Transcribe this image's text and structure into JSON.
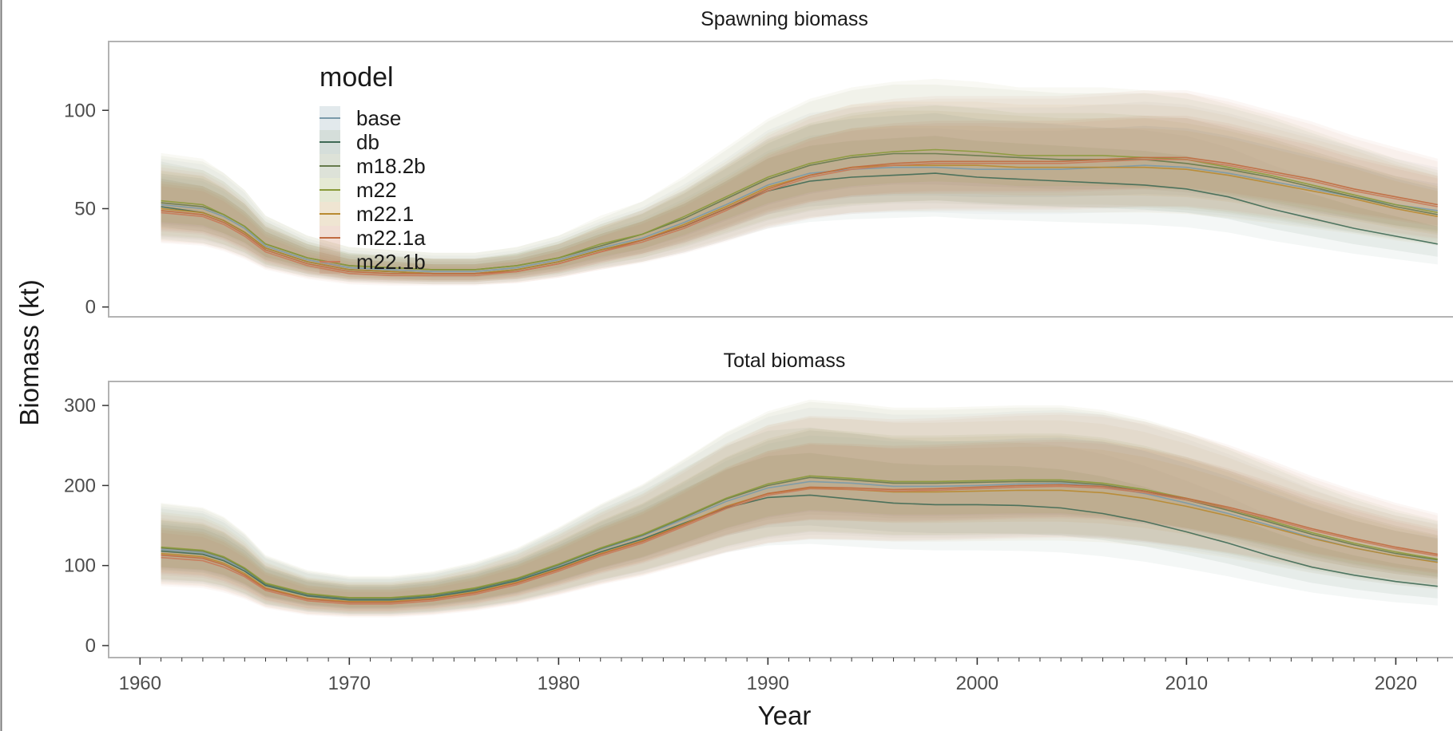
{
  "chart_data": {
    "type": "area",
    "xlabel": "Year",
    "ylabel": "Biomass (kt)",
    "legend": {
      "title": "model",
      "placement": "top-left inside",
      "entries": [
        "base",
        "db",
        "m18.2b",
        "m22",
        "m22.1",
        "m22.1a",
        "m22.1b"
      ]
    },
    "series_colors": {
      "base": "#7a9aaa",
      "db": "#3f6a55",
      "m18.2b": "#667a4c",
      "m22": "#8a9a3a",
      "m22.1": "#b88a30",
      "m22.1a": "#c06a40",
      "m22.1b": "#c87a5a"
    },
    "grid": false,
    "x_ticks": [
      1960,
      1970,
      1980,
      1990,
      2000,
      2010,
      2020
    ],
    "xlim": [
      1958.5,
      2023
    ],
    "panels": [
      {
        "title": "Spawning biomass",
        "ylim": [
          -5,
          135
        ],
        "y_ticks": [
          0,
          50,
          100
        ],
        "x": [
          1961,
          1963,
          1964,
          1965,
          1966,
          1968,
          1970,
          1972,
          1974,
          1976,
          1978,
          1980,
          1982,
          1984,
          1986,
          1988,
          1990,
          1992,
          1994,
          1996,
          1998,
          2000,
          2002,
          2004,
          2006,
          2008,
          2010,
          2012,
          2014,
          2016,
          2018,
          2020,
          2022
        ],
        "series": [
          {
            "name": "base",
            "values": [
              52,
              50,
              46,
              40,
              31,
              24,
              20,
              19,
              18,
              18,
              20,
              24,
              30,
              35,
              43,
              52,
              62,
              68,
              70,
              71,
              71,
              70,
              70,
              70,
              71,
              72,
              71,
              68,
              64,
              60,
              56,
              52,
              49
            ]
          },
          {
            "name": "db",
            "values": [
              51,
              48,
              44,
              38,
              30,
              23,
              19,
              18,
              17,
              17,
              19,
              23,
              29,
              34,
              41,
              50,
              59,
              64,
              66,
              67,
              68,
              66,
              65,
              64,
              63,
              62,
              60,
              56,
              50,
              45,
              40,
              36,
              32
            ]
          },
          {
            "name": "m18.2b",
            "values": [
              53,
              51,
              47,
              41,
              32,
              25,
              21,
              20,
              19,
              19,
              21,
              25,
              31,
              37,
              45,
              55,
              65,
              72,
              76,
              78,
              78,
              77,
              76,
              75,
              75,
              75,
              73,
              70,
              66,
              61,
              56,
              51,
              47
            ]
          },
          {
            "name": "m22",
            "values": [
              54,
              52,
              47,
              41,
              32,
              25,
              21,
              20,
              19,
              19,
              21,
              25,
              32,
              37,
              46,
              56,
              66,
              73,
              77,
              79,
              80,
              79,
              77,
              77,
              77,
              76,
              75,
              71,
              67,
              62,
              57,
              52,
              48
            ]
          },
          {
            "name": "m22.1",
            "values": [
              50,
              48,
              44,
              38,
              30,
              23,
              19,
              18,
              17,
              17,
              19,
              23,
              29,
              34,
              42,
              51,
              61,
              67,
              71,
              72,
              72,
              72,
              71,
              71,
              71,
              71,
              70,
              67,
              63,
              59,
              55,
              50,
              46
            ]
          },
          {
            "name": "m22.1a",
            "values": [
              49,
              47,
              43,
              37,
              29,
              22,
              18,
              17,
              17,
              17,
              18,
              22,
              28,
              34,
              41,
              50,
              60,
              67,
              71,
              73,
              74,
              74,
              74,
              74,
              75,
              76,
              76,
              73,
              69,
              65,
              60,
              56,
              52
            ]
          },
          {
            "name": "m22.1b",
            "values": [
              48,
              46,
              42,
              36,
              28,
              21,
              17,
              16,
              16,
              16,
              18,
              22,
              28,
              33,
              40,
              49,
              59,
              66,
              70,
              72,
              73,
              73,
              73,
              73,
              74,
              75,
              75,
              72,
              68,
              64,
              59,
              55,
              51
            ]
          }
        ]
      },
      {
        "title": "Total biomass",
        "ylim": [
          -15,
          330
        ],
        "y_ticks": [
          0,
          100,
          200,
          300
        ],
        "x": [
          1961,
          1963,
          1964,
          1965,
          1966,
          1968,
          1970,
          1972,
          1974,
          1976,
          1978,
          1980,
          1982,
          1984,
          1986,
          1988,
          1990,
          1992,
          1994,
          1996,
          1998,
          2000,
          2002,
          2004,
          2006,
          2008,
          2010,
          2012,
          2014,
          2016,
          2018,
          2020,
          2022
        ],
        "series": [
          {
            "name": "base",
            "values": [
              120,
              116,
              108,
              95,
              76,
              63,
              58,
              58,
              62,
              70,
              82,
              100,
              120,
              137,
              158,
              180,
              197,
              205,
              203,
              199,
              199,
              200,
              202,
              203,
              199,
              190,
              178,
              165,
              150,
              135,
              122,
              112,
              105
            ]
          },
          {
            "name": "db",
            "values": [
              118,
              114,
              106,
              93,
              75,
              62,
              57,
              57,
              61,
              69,
              81,
              98,
              117,
              133,
              153,
              172,
              185,
              188,
              183,
              178,
              176,
              176,
              175,
              172,
              165,
              155,
              142,
              128,
              112,
              98,
              88,
              80,
              74
            ]
          },
          {
            "name": "m18.2b",
            "values": [
              122,
              118,
              110,
              96,
              77,
              64,
              59,
              59,
              63,
              71,
              83,
              101,
              121,
              138,
              160,
              183,
              200,
              210,
              207,
              203,
              203,
              204,
              205,
              205,
              201,
              193,
              182,
              169,
              154,
              139,
              126,
              115,
              107
            ]
          },
          {
            "name": "m22",
            "values": [
              123,
              119,
              111,
              97,
              78,
              65,
              60,
              60,
              64,
              72,
              84,
              102,
              122,
              139,
              161,
              184,
              202,
              212,
              209,
              205,
              205,
              206,
              207,
              207,
              203,
              195,
              184,
              171,
              156,
              141,
              128,
              117,
              108
            ]
          },
          {
            "name": "m22.1",
            "values": [
              115,
              111,
              103,
              90,
              72,
              59,
              55,
              55,
              59,
              67,
              79,
              96,
              115,
              131,
              152,
              174,
              190,
              197,
              195,
              192,
              192,
              193,
              194,
              194,
              191,
              184,
              174,
              162,
              148,
              134,
              122,
              112,
              104
            ]
          },
          {
            "name": "m22.1a",
            "values": [
              113,
              109,
              101,
              88,
              71,
              58,
              54,
              54,
              58,
              66,
              78,
              95,
              114,
              130,
              151,
              173,
              190,
              198,
              197,
              195,
              196,
              198,
              200,
              201,
              199,
              193,
              184,
              173,
              160,
              146,
              134,
              123,
              114
            ]
          },
          {
            "name": "m22.1b",
            "values": [
              110,
              106,
              98,
              86,
              69,
              56,
              52,
              52,
              56,
              64,
              76,
              93,
              112,
              128,
              149,
              171,
              188,
              196,
              195,
              193,
              194,
              196,
              198,
              199,
              197,
              191,
              182,
              171,
              158,
              144,
              132,
              121,
              112
            ]
          }
        ]
      }
    ]
  }
}
